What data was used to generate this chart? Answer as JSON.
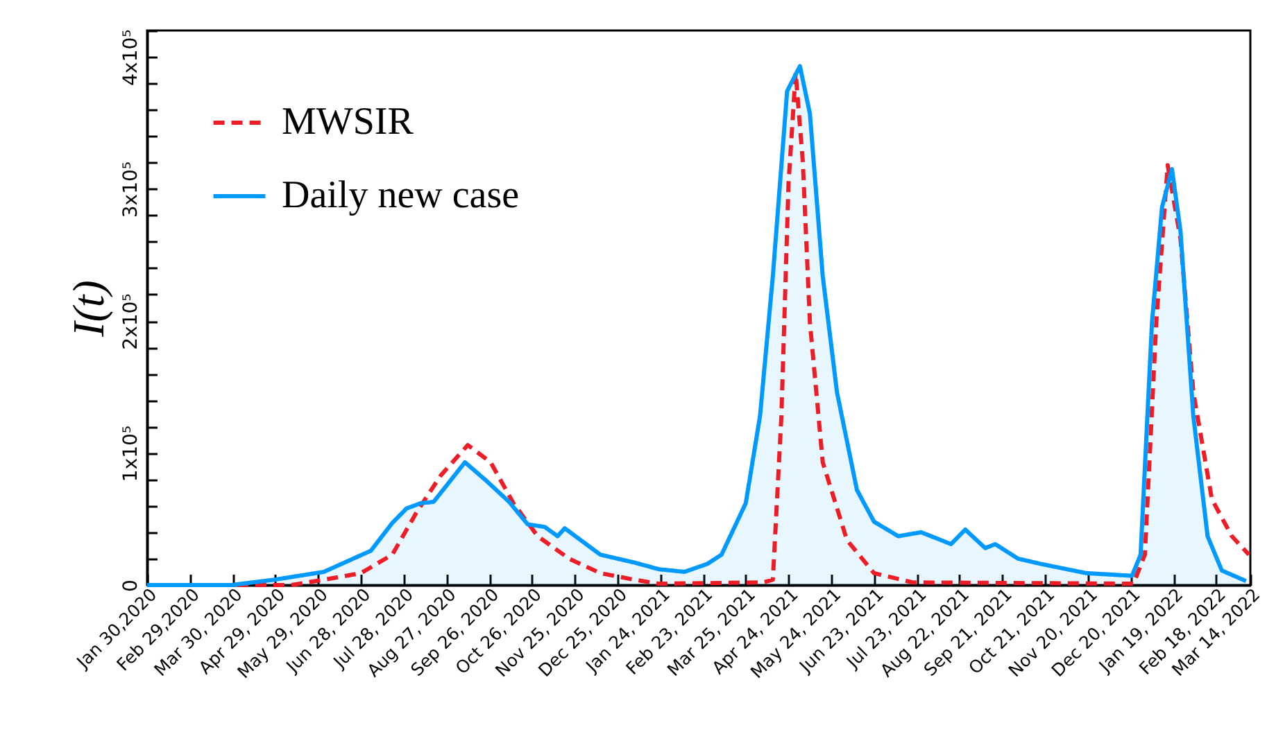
{
  "chart_data": {
    "type": "line",
    "ylabel": "I(t)",
    "xlim": [
      "2020-01-30",
      "2022-03-14"
    ],
    "xticks": [
      {
        "value": "2020-01-30",
        "label": "Jan 30,2020"
      },
      {
        "value": "2020-02-29",
        "label": "Feb 29,2020"
      },
      {
        "value": "2020-03-30",
        "label": "Mar 30, 2020"
      },
      {
        "value": "2020-04-29",
        "label": "Apr 29, 2020"
      },
      {
        "value": "2020-05-29",
        "label": "May 29, 2020"
      },
      {
        "value": "2020-06-28",
        "label": "Jun 28, 2020"
      },
      {
        "value": "2020-07-28",
        "label": "Jul 28, 2020"
      },
      {
        "value": "2020-08-27",
        "label": "Aug 27, 2020"
      },
      {
        "value": "2020-09-26",
        "label": "Sep 26, 2020"
      },
      {
        "value": "2020-10-26",
        "label": "Oct 26, 2020"
      },
      {
        "value": "2020-11-25",
        "label": "Nov 25, 2020"
      },
      {
        "value": "2020-12-25",
        "label": "Dec 25, 2020"
      },
      {
        "value": "2021-01-24",
        "label": "Jan 24, 2021"
      },
      {
        "value": "2021-02-23",
        "label": "Feb 23, 2021"
      },
      {
        "value": "2021-03-25",
        "label": "Mar 25, 2021"
      },
      {
        "value": "2021-04-24",
        "label": "Apr 24, 2021"
      },
      {
        "value": "2021-05-24",
        "label": "May 24, 2021"
      },
      {
        "value": "2021-06-23",
        "label": "Jun 23, 2021"
      },
      {
        "value": "2021-07-23",
        "label": "Jul 23, 2021"
      },
      {
        "value": "2021-08-22",
        "label": "Aug 22, 2021"
      },
      {
        "value": "2021-09-21",
        "label": "Sep 21, 2021"
      },
      {
        "value": "2021-10-21",
        "label": "Oct 21, 2021"
      },
      {
        "value": "2021-11-20",
        "label": "Nov 20, 2021"
      },
      {
        "value": "2021-12-20",
        "label": "Dec 20, 2021"
      },
      {
        "value": "2022-01-19",
        "label": "Jan 19, 2022"
      },
      {
        "value": "2022-02-18",
        "label": "Feb 18, 2022"
      },
      {
        "value": "2022-03-14",
        "label": "Mar 14, 2022"
      }
    ],
    "ylim": [
      0,
      420000
    ],
    "yticks": [
      0,
      {
        "value": 20000,
        "label": null
      },
      {
        "value": 40000,
        "label": null
      },
      {
        "value": 60000,
        "label": null
      },
      {
        "value": 80000,
        "label": null
      },
      {
        "value": 100000,
        "label": "1x10⁵"
      },
      {
        "value": 120000,
        "label": null
      },
      {
        "value": 140000,
        "label": null
      },
      {
        "value": 160000,
        "label": null
      },
      {
        "value": 180000,
        "label": null
      },
      {
        "value": 200000,
        "label": "2x10⁵"
      },
      {
        "value": 220000,
        "label": null
      },
      {
        "value": 240000,
        "label": null
      },
      {
        "value": 260000,
        "label": null
      },
      {
        "value": 280000,
        "label": null
      },
      {
        "value": 300000,
        "label": "3x10⁵"
      },
      {
        "value": 320000,
        "label": null
      },
      {
        "value": 340000,
        "label": null
      },
      {
        "value": 360000,
        "label": null
      },
      {
        "value": 380000,
        "label": null
      },
      {
        "value": 400000,
        "label": "4x10⁵"
      },
      {
        "value": 420000,
        "label": null
      }
    ],
    "legend": "top left",
    "grid": false,
    "series": [
      {
        "name": "MWSIR",
        "line_style": "dashed",
        "color": "#ee1c25",
        "x": [
          "2020-01-30",
          "2020-05-10",
          "2020-06-02",
          "2020-06-28",
          "2020-07-20",
          "2020-08-06",
          "2020-08-23",
          "2020-09-11",
          "2020-09-27",
          "2020-10-13",
          "2020-10-30",
          "2020-11-21",
          "2020-12-13",
          "2021-01-06",
          "2021-01-23",
          "2021-04-06",
          "2021-04-13",
          "2021-04-19",
          "2021-04-24",
          "2021-04-29",
          "2021-05-04",
          "2021-05-09",
          "2021-05-18",
          "2021-06-04",
          "2021-06-23",
          "2021-07-20",
          "2021-12-22",
          "2021-12-30",
          "2022-01-07",
          "2022-01-15",
          "2022-01-24",
          "2022-02-02",
          "2022-02-15",
          "2022-03-01",
          "2022-03-13"
        ],
        "values": [
          0,
          0,
          4000,
          9000,
          23000,
          55000,
          83000,
          106000,
          93000,
          62000,
          37000,
          20000,
          9000,
          4000,
          1000,
          2000,
          4000,
          128000,
          304000,
          388000,
          321000,
          199000,
          93000,
          34000,
          9000,
          2000,
          1000,
          23000,
          199000,
          318000,
          262000,
          146000,
          65000,
          37000,
          23000
        ]
      },
      {
        "name": "Daily new case",
        "type": "area",
        "line_style": "solid",
        "color": "#0099ff",
        "x": [
          "2020-01-30",
          "2020-03-29",
          "2020-04-28",
          "2020-06-02",
          "2020-07-05",
          "2020-07-20",
          "2020-07-30",
          "2020-08-09",
          "2020-08-18",
          "2020-09-09",
          "2020-09-24",
          "2020-10-10",
          "2020-10-23",
          "2020-11-04",
          "2020-11-13",
          "2020-11-18",
          "2020-12-13",
          "2021-01-06",
          "2021-01-23",
          "2021-02-10",
          "2021-02-26",
          "2021-03-08",
          "2021-03-25",
          "2021-04-04",
          "2021-04-13",
          "2021-04-23",
          "2021-05-02",
          "2021-05-09",
          "2021-05-18",
          "2021-05-28",
          "2021-06-11",
          "2021-06-23",
          "2021-07-10",
          "2021-07-26",
          "2021-08-16",
          "2021-08-26",
          "2021-09-09",
          "2021-09-16",
          "2021-10-02",
          "2021-10-18",
          "2021-11-19",
          "2021-12-21",
          "2021-12-27",
          "2022-01-04",
          "2022-01-11",
          "2022-01-18",
          "2022-01-24",
          "2022-02-02",
          "2022-02-12",
          "2022-02-22",
          "2022-03-11"
        ],
        "values": [
          0,
          0,
          4000,
          10000,
          26000,
          47000,
          58000,
          62000,
          63000,
          93000,
          79000,
          63000,
          46000,
          44000,
          37000,
          43000,
          23000,
          17000,
          12000,
          10000,
          16000,
          23000,
          62000,
          128000,
          234000,
          374000,
          393000,
          357000,
          234000,
          146000,
          72000,
          48000,
          37000,
          40000,
          31000,
          42000,
          28000,
          31000,
          20000,
          16000,
          9000,
          7000,
          23000,
          199000,
          286000,
          315000,
          268000,
          128000,
          37000,
          11000,
          3000
        ]
      }
    ]
  }
}
